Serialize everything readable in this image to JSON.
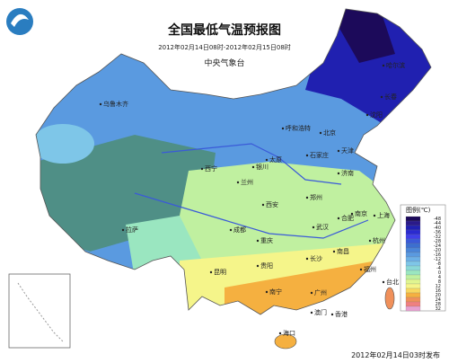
{
  "header": {
    "title": "全国最低气温预报图",
    "subtitle": "2012年02月14日08时-2012年02月15日08时",
    "issuer": "中央气象台"
  },
  "cities": [
    "乌鲁木齐",
    "哈尔滨",
    "长春",
    "沈阳",
    "呼和浩特",
    "北京",
    "天津",
    "石家庄",
    "太原",
    "银川",
    "西宁",
    "兰州",
    "济南",
    "郑州",
    "西安",
    "合肥",
    "南京",
    "上海",
    "武汉",
    "杭州",
    "成都",
    "重庆",
    "长沙",
    "南昌",
    "福州",
    "台北",
    "贵阳",
    "昆明",
    "拉萨",
    "南宁",
    "广州",
    "香港",
    "澳门",
    "海口"
  ],
  "legend": {
    "title": "图例(℃)",
    "items": [
      {
        "value": -48,
        "color": "#1c0a5a"
      },
      {
        "value": -44,
        "color": "#2a1a8a"
      },
      {
        "value": -40,
        "color": "#2020b0"
      },
      {
        "value": -36,
        "color": "#2a2ad0"
      },
      {
        "value": -32,
        "color": "#3f3fe8"
      },
      {
        "value": -28,
        "color": "#3a5ad8"
      },
      {
        "value": -24,
        "color": "#3c6fd0"
      },
      {
        "value": -20,
        "color": "#4a85d8"
      },
      {
        "value": -16,
        "color": "#5a9ae0"
      },
      {
        "value": -12,
        "color": "#6cb0e6"
      },
      {
        "value": -8,
        "color": "#7ec6e8"
      },
      {
        "value": -4,
        "color": "#8ad8d8"
      },
      {
        "value": 0,
        "color": "#9ae6c0"
      },
      {
        "value": 4,
        "color": "#c0f0a0"
      },
      {
        "value": 8,
        "color": "#e0f590"
      },
      {
        "value": 12,
        "color": "#f5f58a"
      },
      {
        "value": 16,
        "color": "#f8d860"
      },
      {
        "value": 20,
        "color": "#f5b040"
      },
      {
        "value": 24,
        "color": "#f0905a"
      },
      {
        "value": 28,
        "color": "#f08080"
      },
      {
        "value": 32,
        "color": "#e8a0d0"
      }
    ]
  },
  "footer": "2012年02月14日03时发布"
}
